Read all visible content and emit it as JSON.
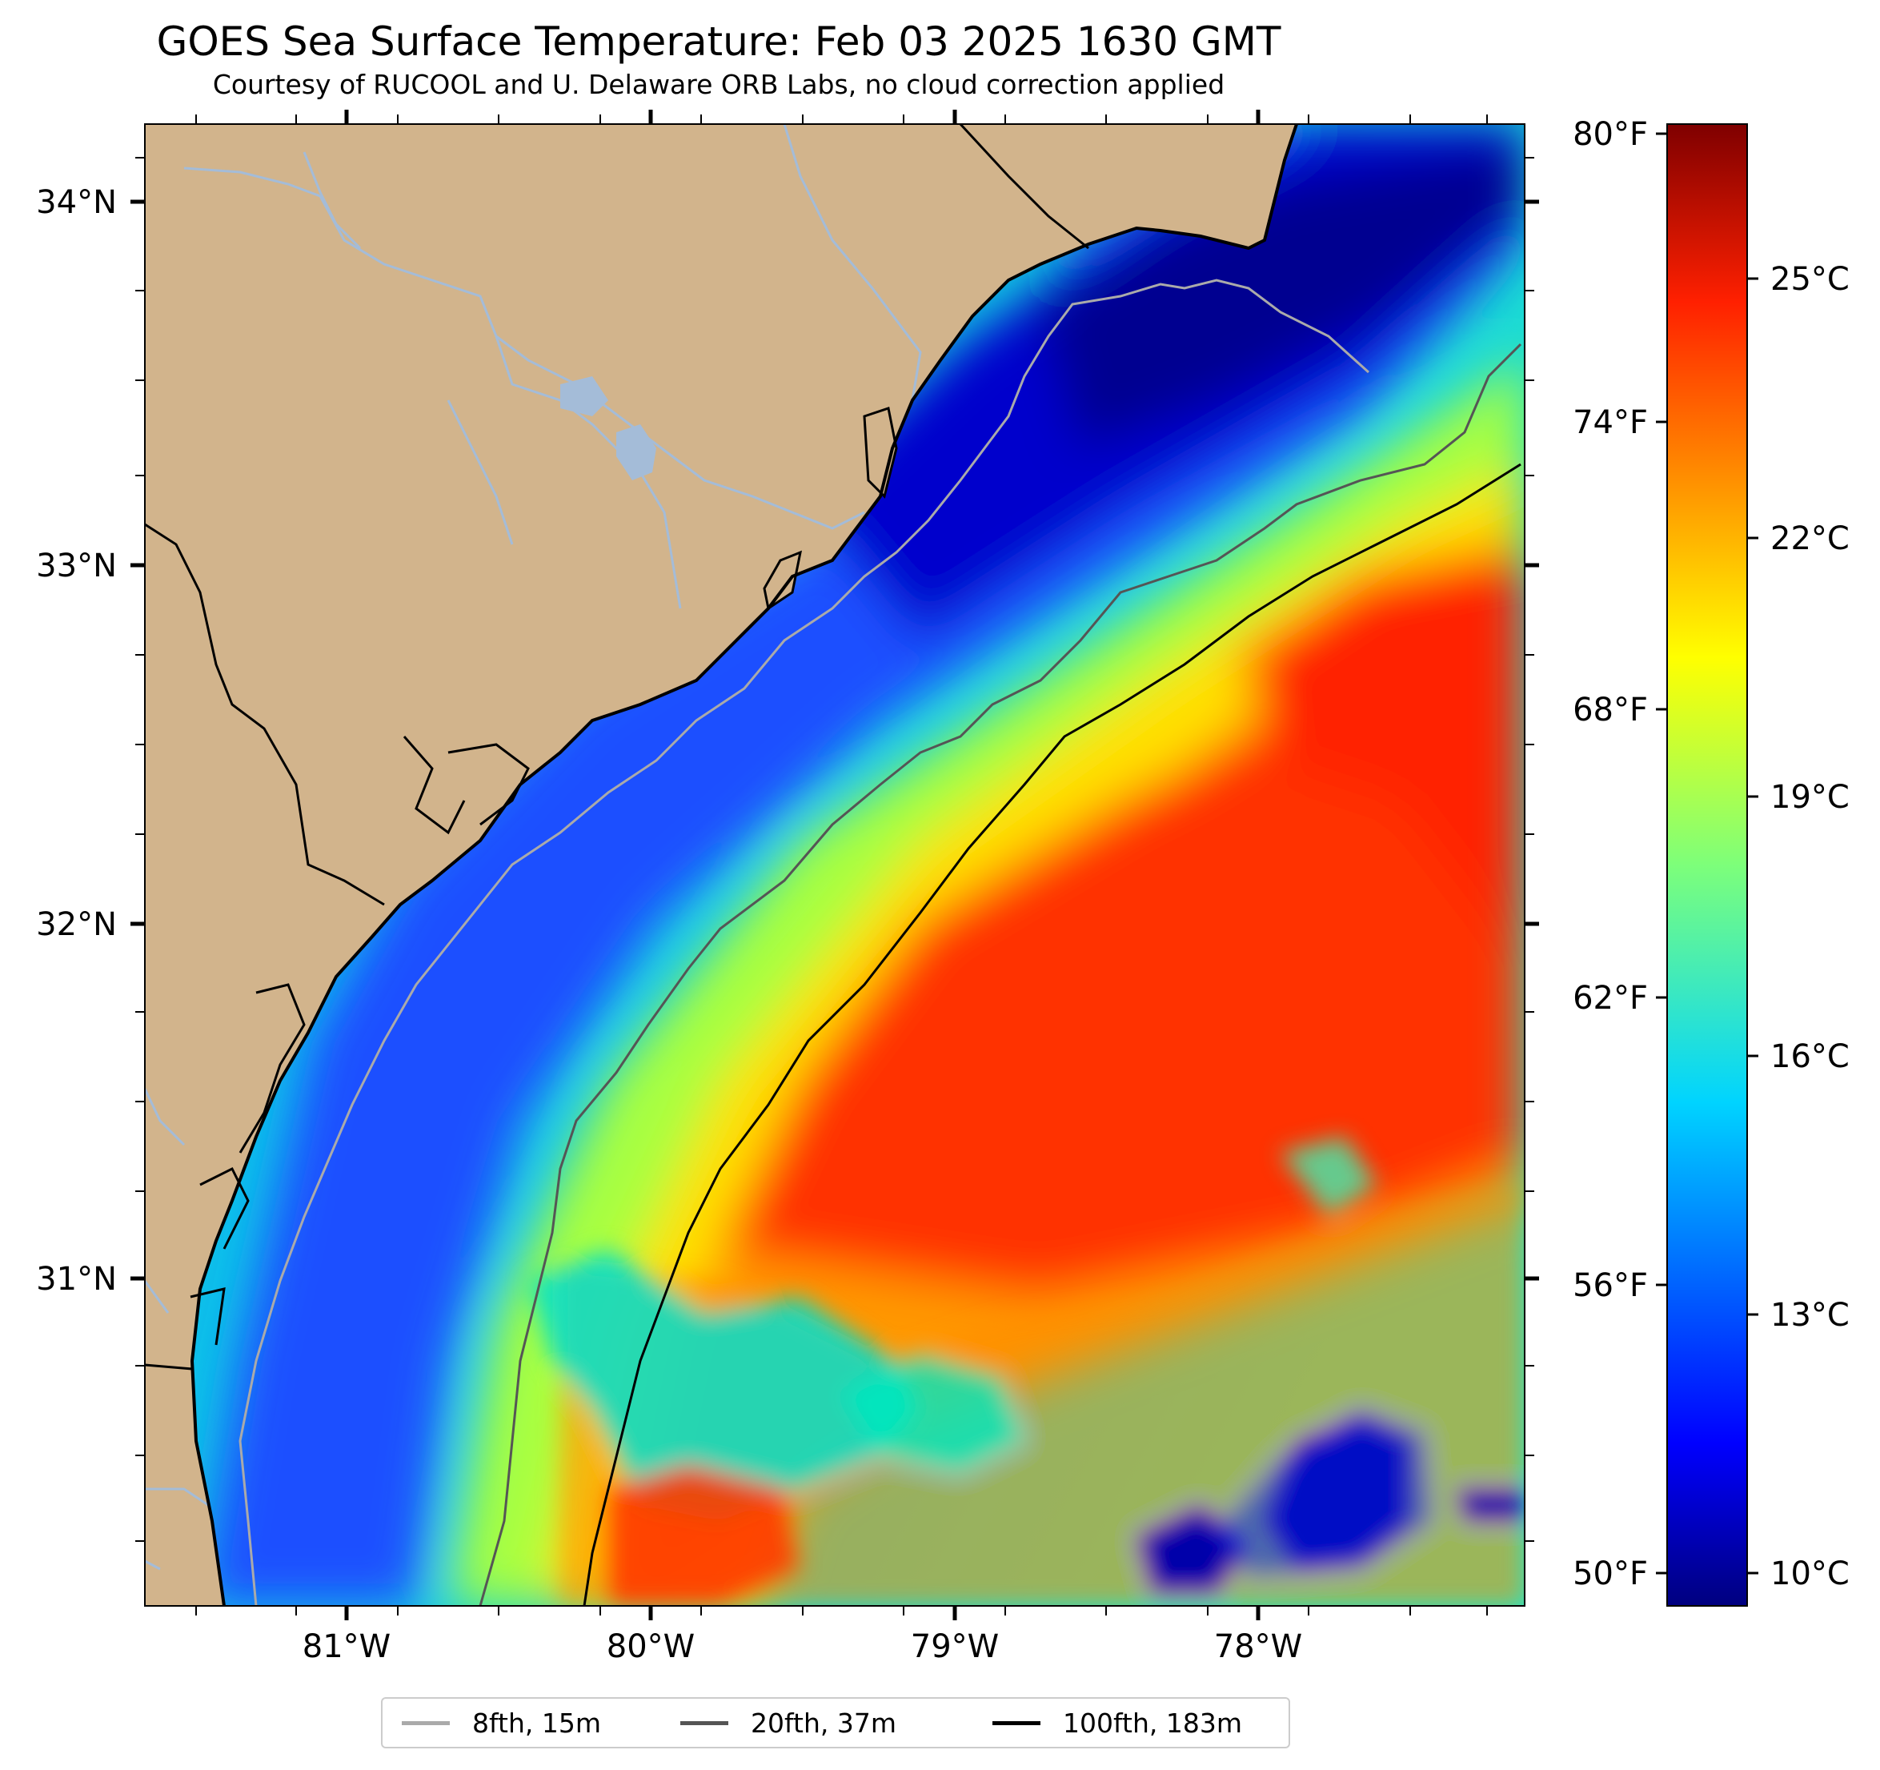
{
  "title": "GOES Sea Surface Temperature: Feb 03 2025 1630 GMT",
  "subtitle": "Courtesy of RUCOOL and U. Delaware ORB Labs, no cloud correction applied",
  "map": {
    "lat_labels": [
      "34°N",
      "33°N",
      "32°N",
      "31°N"
    ],
    "lon_labels": [
      "81°W",
      "80°W",
      "79°W",
      "78°W"
    ],
    "colors": {
      "land": "#d2b48c",
      "river": "#a4bcd8",
      "coastline": "#000000",
      "state_border": "#000000"
    }
  },
  "colorbar": {
    "fahrenheit_labels": [
      "80°F",
      "74°F",
      "68°F",
      "62°F",
      "56°F",
      "50°F"
    ],
    "celsius_labels": [
      "25°C",
      "22°C",
      "19°C",
      "16°C",
      "13°C",
      "10°C"
    ],
    "colormap": "jet",
    "range_c": [
      9.5,
      27
    ]
  },
  "legend": {
    "items": [
      {
        "label": "8fth, 15m",
        "color": "#aaaaaa"
      },
      {
        "label": "20fth, 37m",
        "color": "#555555"
      },
      {
        "label": "100fth, 183m",
        "color": "#000000"
      }
    ]
  }
}
